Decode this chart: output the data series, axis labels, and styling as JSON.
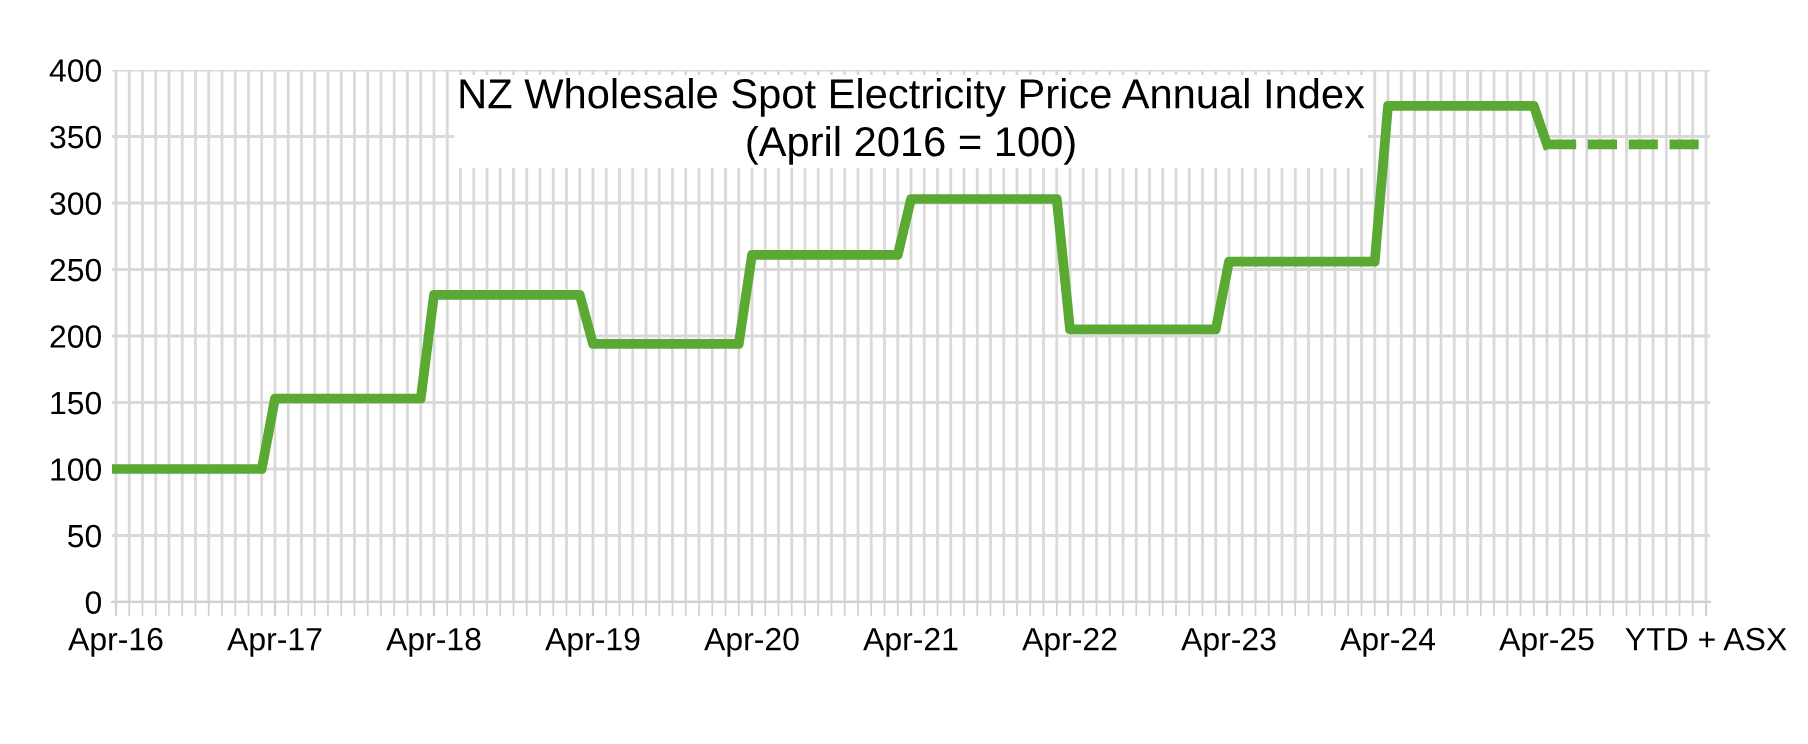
{
  "chart_data": {
    "type": "line",
    "title": "NZ Wholesale Spot Electricity Price Annual Index\n(April 2016 = 100)",
    "categories": [
      "Apr-16",
      null,
      null,
      null,
      null,
      null,
      null,
      null,
      null,
      null,
      null,
      null,
      "Apr-17",
      null,
      null,
      null,
      null,
      null,
      null,
      null,
      null,
      null,
      null,
      null,
      "Apr-18",
      null,
      null,
      null,
      null,
      null,
      null,
      null,
      null,
      null,
      null,
      null,
      "Apr-19",
      null,
      null,
      null,
      null,
      null,
      null,
      null,
      null,
      null,
      null,
      null,
      "Apr-20",
      null,
      null,
      null,
      null,
      null,
      null,
      null,
      null,
      null,
      null,
      null,
      "Apr-21",
      null,
      null,
      null,
      null,
      null,
      null,
      null,
      null,
      null,
      null,
      null,
      "Apr-22",
      null,
      null,
      null,
      null,
      null,
      null,
      null,
      null,
      null,
      null,
      null,
      "Apr-23",
      null,
      null,
      null,
      null,
      null,
      null,
      null,
      null,
      null,
      null,
      null,
      "Apr-24",
      null,
      null,
      null,
      null,
      null,
      null,
      null,
      null,
      null,
      null,
      null,
      "Apr-25",
      null,
      null,
      null,
      null,
      null,
      null,
      null,
      null,
      null,
      null,
      null,
      "YTD + ASX"
    ],
    "series": [
      {
        "color": "#5aa933",
        "line_style": "solid",
        "values": [
          100,
          100,
          100,
          100,
          100,
          100,
          100,
          100,
          100,
          100,
          100,
          100,
          153,
          153,
          153,
          153,
          153,
          153,
          153,
          153,
          153,
          153,
          153,
          153,
          231,
          231,
          231,
          231,
          231,
          231,
          231,
          231,
          231,
          231,
          231,
          231,
          194,
          194,
          194,
          194,
          194,
          194,
          194,
          194,
          194,
          194,
          194,
          194,
          261,
          261,
          261,
          261,
          261,
          261,
          261,
          261,
          261,
          261,
          261,
          261,
          303,
          303,
          303,
          303,
          303,
          303,
          303,
          303,
          303,
          303,
          303,
          303,
          205,
          205,
          205,
          205,
          205,
          205,
          205,
          205,
          205,
          205,
          205,
          205,
          256,
          256,
          256,
          256,
          256,
          256,
          256,
          256,
          256,
          256,
          256,
          256,
          373,
          373,
          373,
          373,
          373,
          373,
          373,
          373,
          373,
          373,
          373,
          373,
          344,
          null,
          null,
          null,
          null,
          null,
          null,
          null,
          null,
          null,
          null,
          null,
          null
        ]
      },
      {
        "color": "#5aa933",
        "line_style": "dashed",
        "values": [
          null,
          null,
          null,
          null,
          null,
          null,
          null,
          null,
          null,
          null,
          null,
          null,
          null,
          null,
          null,
          null,
          null,
          null,
          null,
          null,
          null,
          null,
          null,
          null,
          null,
          null,
          null,
          null,
          null,
          null,
          null,
          null,
          null,
          null,
          null,
          null,
          null,
          null,
          null,
          null,
          null,
          null,
          null,
          null,
          null,
          null,
          null,
          null,
          null,
          null,
          null,
          null,
          null,
          null,
          null,
          null,
          null,
          null,
          null,
          null,
          null,
          null,
          null,
          null,
          null,
          null,
          null,
          null,
          null,
          null,
          null,
          null,
          null,
          null,
          null,
          null,
          null,
          null,
          null,
          null,
          null,
          null,
          null,
          null,
          null,
          null,
          null,
          null,
          null,
          null,
          null,
          null,
          null,
          null,
          null,
          null,
          null,
          null,
          null,
          null,
          null,
          null,
          null,
          null,
          null,
          null,
          null,
          null,
          344,
          344,
          344,
          344,
          344,
          344,
          344,
          344,
          344,
          344,
          344,
          344,
          344
        ]
      }
    ],
    "ylim": [
      0,
      400
    ],
    "yticks": [
      0,
      50,
      100,
      150,
      200,
      250,
      300,
      350,
      400
    ],
    "grid": true,
    "legend": false,
    "marker": "none"
  }
}
